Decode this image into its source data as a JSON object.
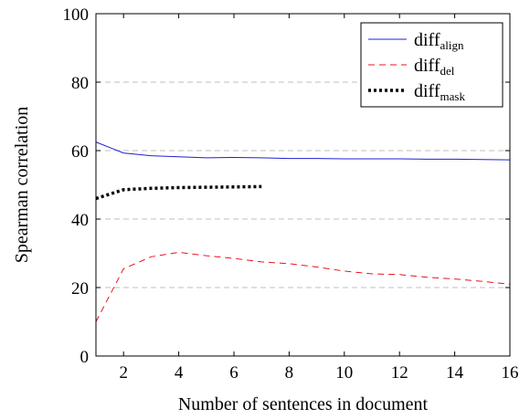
{
  "chart_data": {
    "type": "line",
    "xlabel": "Number of sentences in document",
    "ylabel": "Spearman correlation",
    "xlim": [
      1,
      16
    ],
    "ylim": [
      0,
      100
    ],
    "x_ticks": [
      2,
      4,
      6,
      8,
      10,
      12,
      14,
      16
    ],
    "y_ticks": [
      0,
      20,
      40,
      60,
      80,
      100
    ],
    "grid": "horizontal dashed at y ticks",
    "legend_position": "top-right",
    "series": [
      {
        "name": "diff",
        "name_sub": "align",
        "color": "#1f1fd6",
        "style": "solid",
        "x": [
          1,
          2,
          3,
          4,
          5,
          6,
          7,
          8,
          9,
          10,
          11,
          12,
          13,
          14,
          15,
          16
        ],
        "values": [
          62.5,
          59.3,
          58.5,
          58.2,
          57.9,
          58.0,
          57.9,
          57.7,
          57.7,
          57.6,
          57.6,
          57.6,
          57.5,
          57.5,
          57.4,
          57.3
        ]
      },
      {
        "name": "diff",
        "name_sub": "del",
        "color": "#e8141c",
        "style": "dashed",
        "x": [
          1,
          2,
          3,
          4,
          5,
          6,
          7,
          8,
          9,
          10,
          11,
          12,
          13,
          14,
          15,
          16
        ],
        "values": [
          10.0,
          25.5,
          29.0,
          30.3,
          29.3,
          28.5,
          27.5,
          27.0,
          26.0,
          24.8,
          24.0,
          23.8,
          23.0,
          22.5,
          21.8,
          21.0
        ]
      },
      {
        "name": "diff",
        "name_sub": "mask",
        "color": "#000000",
        "style": "dotted",
        "x": [
          1,
          2,
          3,
          4,
          5,
          6,
          7
        ],
        "values": [
          46.0,
          48.6,
          49.0,
          49.2,
          49.3,
          49.4,
          49.5
        ]
      }
    ]
  }
}
